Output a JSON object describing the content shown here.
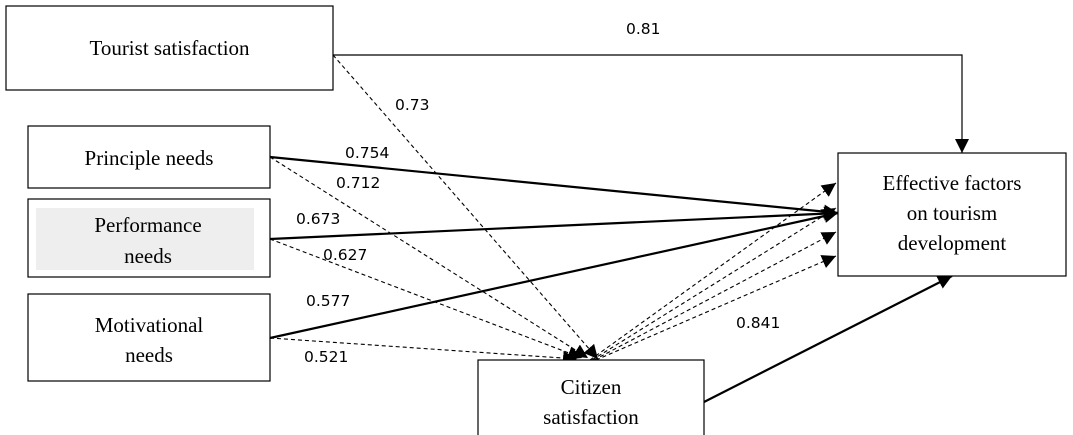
{
  "nodes": {
    "tourist_satisfaction": {
      "lines": [
        "Tourist satisfaction"
      ]
    },
    "principle_needs": {
      "lines": [
        "Principle needs"
      ]
    },
    "performance_needs": {
      "lines": [
        "Performance",
        "needs"
      ]
    },
    "motivational_needs": {
      "lines": [
        "Motivational",
        "needs"
      ]
    },
    "citizen_satisfaction": {
      "lines": [
        "Citizen",
        "satisfaction"
      ]
    },
    "effective_factors": {
      "lines": [
        "Effective factors",
        "on tourism",
        "development"
      ]
    }
  },
  "paths": {
    "tourist_to_effective": "0.81",
    "tourist_to_citizen": "0.73",
    "principle_to_effective": "0.754",
    "principle_to_citizen": "0.712",
    "performance_to_effective": "0.673",
    "performance_to_citizen": "0.627",
    "motivational_to_effective": "0.577",
    "motivational_to_citizen": "0.521",
    "citizen_to_effective": "0.841"
  },
  "colors": {
    "stroke": "#000000",
    "performance_fill": "#eeeeee"
  }
}
